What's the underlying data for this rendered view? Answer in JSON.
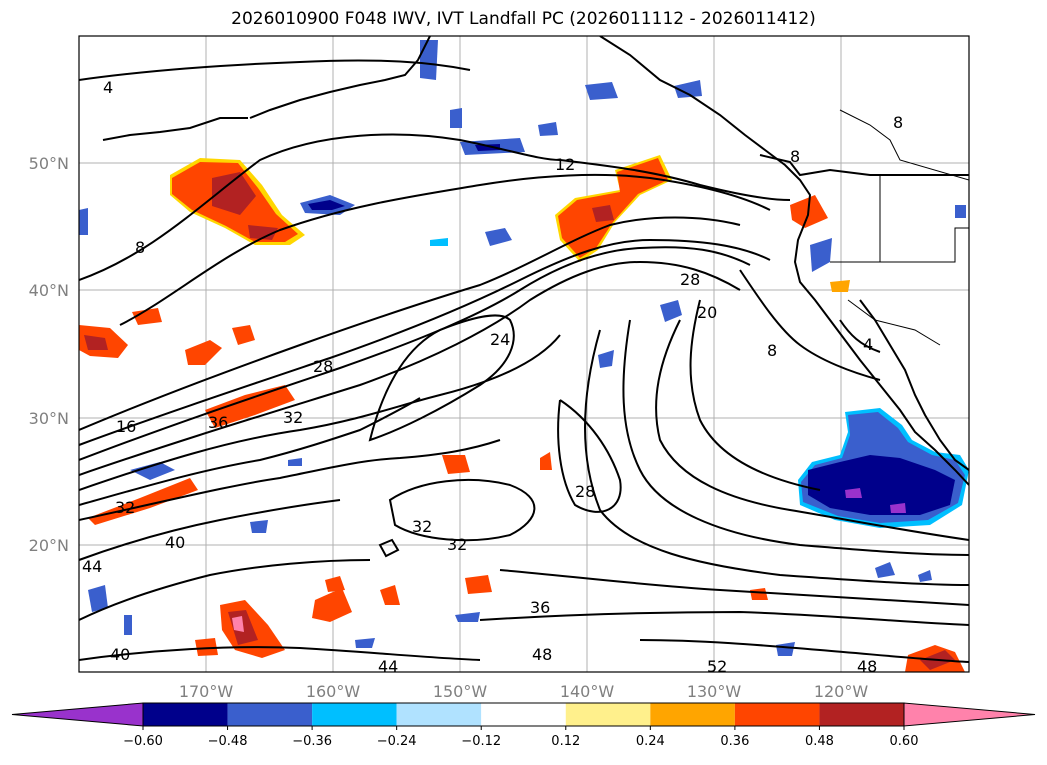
{
  "title": "2026010900 F048 IWV, IVT Landfall PC (2026011112 - 2026011412)",
  "map": {
    "lat_labels": [
      "50°N",
      "40°N",
      "30°N",
      "20°N"
    ],
    "lon_labels": [
      "170°W",
      "160°W",
      "150°W",
      "140°W",
      "130°W",
      "120°W"
    ],
    "contour_labels": [
      "4",
      "12",
      "8",
      "28",
      "24",
      "20",
      "16",
      "36",
      "32",
      "28",
      "32",
      "40",
      "44",
      "32",
      "32",
      "28",
      "36",
      "48",
      "44",
      "40",
      "48",
      "52",
      "8",
      "8",
      "8",
      "4"
    ]
  },
  "colorbar": {
    "tick_labels": [
      "−0.60",
      "−0.48",
      "−0.36",
      "−0.24",
      "−0.12",
      "0.12",
      "0.24",
      "0.36",
      "0.48",
      "0.60"
    ],
    "colors": [
      "#9932cc",
      "#00008b",
      "#3a5fcd",
      "#00bfff",
      "#b0e2ff",
      "#ffffff",
      "#fff08c",
      "#ffa500",
      "#ff4500",
      "#b22222",
      "#ff82ab"
    ]
  }
}
